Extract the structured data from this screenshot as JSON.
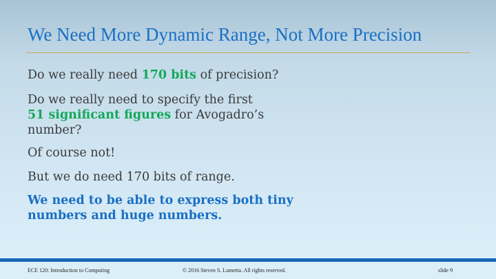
{
  "slide": {
    "title": "We Need More Dynamic Range, Not More Precision",
    "p1": {
      "pre": "Do we really need ",
      "em": "170 bits",
      "post": " of precision?"
    },
    "p2": {
      "line1": "Do we really need to specify the first",
      "em": "51 significant figures",
      "post": " for Avogadro’s",
      "line3": "number?"
    },
    "p3": "Of course not!",
    "p4": "But we do need 170 bits of range.",
    "p5": {
      "line1": "We need to be able to express both tiny",
      "line2": "numbers and huge numbers."
    }
  },
  "footer": {
    "course": "ECE 120: Introduction to Computing",
    "copyright": "© 2016 Steven S. Lumetta.  All rights reserved.",
    "slide_number": "slide 9"
  },
  "colors": {
    "title": "#1a6fc4",
    "emphasis_green": "#14a85a",
    "emphasis_blue": "#1a6fc4",
    "footer_bar": "#1665b5",
    "rule": "#c3b04a"
  }
}
